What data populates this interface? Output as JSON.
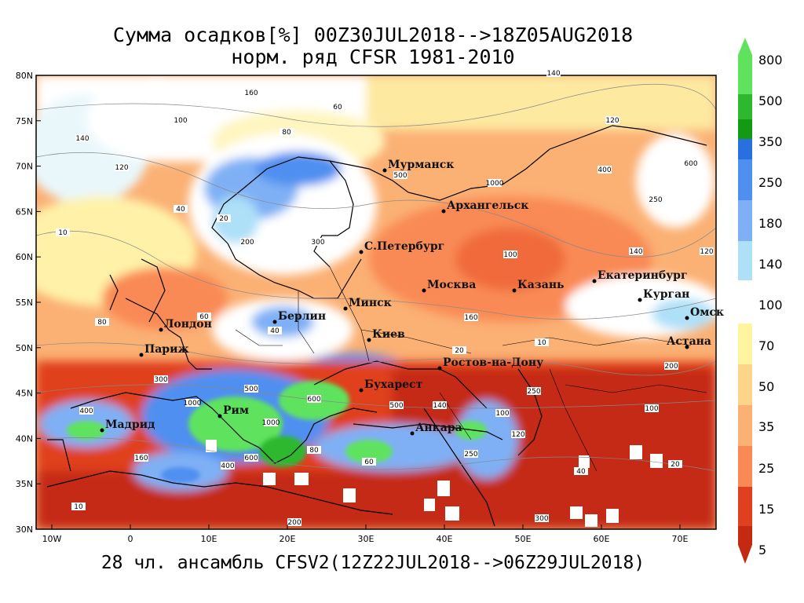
{
  "title": {
    "line1": "Сумма осадков[%] 00Z30JUL2018-->18Z05AUG2018",
    "line2": "норм. ряд CFSR 1981-2010"
  },
  "footer": "28 чл. ансамбль CFSV2(12Z22JUL2018-->06Z29JUL2018)",
  "axes": {
    "lat_labels": [
      "80N",
      "75N",
      "70N",
      "65N",
      "60N",
      "55N",
      "50N",
      "45N",
      "40N",
      "35N",
      "30N"
    ],
    "lon_labels": [
      "10W",
      "0",
      "10E",
      "20E",
      "30E",
      "40E",
      "50E",
      "60E",
      "70E"
    ]
  },
  "colorbar": {
    "labels": [
      "800",
      "500",
      "350",
      "250",
      "180",
      "140",
      "100",
      "70",
      "50",
      "35",
      "25",
      "15",
      "5"
    ],
    "colors": [
      "#5fe35f",
      "#2db82d",
      "#129a12",
      "#2a6fe0",
      "#4f8ff0",
      "#7fb0f5",
      "#aee0f8",
      "#ffffff",
      "#fff5a0",
      "#fdd58a",
      "#fbb074",
      "#f98a55",
      "#f06a3a",
      "#e0401f",
      "#c42a12"
    ]
  },
  "cities": [
    {
      "name": "Мурманск"
    },
    {
      "name": "Архангельск"
    },
    {
      "name": "С.Петербург"
    },
    {
      "name": "Москва"
    },
    {
      "name": "Казань"
    },
    {
      "name": "Екатеринбург"
    },
    {
      "name": "Курган"
    },
    {
      "name": "Омск"
    },
    {
      "name": "Астана"
    },
    {
      "name": "Минск"
    },
    {
      "name": "Берлин"
    },
    {
      "name": "Лондон"
    },
    {
      "name": "Париж"
    },
    {
      "name": "Киев"
    },
    {
      "name": "Ростов-на-Дону"
    },
    {
      "name": "Рим"
    },
    {
      "name": "Мадрид"
    },
    {
      "name": "Бухарест"
    },
    {
      "name": "Анкара"
    }
  ],
  "contour_values": [
    "100",
    "140",
    "120",
    "160",
    "80",
    "60",
    "40",
    "20",
    "10",
    "200",
    "300",
    "500",
    "1000",
    "400",
    "600",
    "250"
  ]
}
